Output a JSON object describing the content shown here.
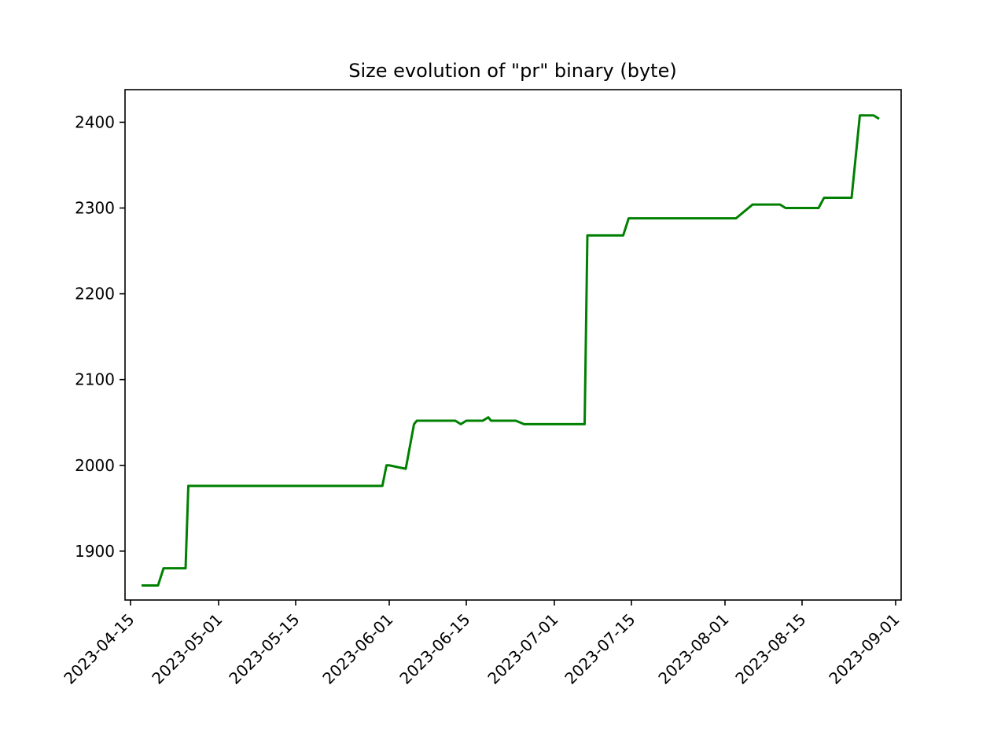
{
  "chart_data": {
    "type": "line",
    "title": "Size evolution of \"pr\" binary (byte)",
    "xlabel": "",
    "ylabel": "",
    "xlim": [
      "2023-04-14",
      "2023-09-02"
    ],
    "ylim": [
      1843,
      2438
    ],
    "x_ticks": [
      "2023-04-15",
      "2023-05-01",
      "2023-05-15",
      "2023-06-01",
      "2023-06-15",
      "2023-07-01",
      "2023-07-15",
      "2023-08-01",
      "2023-08-15",
      "2023-09-01"
    ],
    "y_ticks": [
      1900,
      2000,
      2100,
      2200,
      2300,
      2400
    ],
    "grid": false,
    "legend": "none",
    "series": [
      {
        "color": "#008000",
        "points": [
          [
            "2023-04-17",
            1860
          ],
          [
            "2023-04-20",
            1860
          ],
          [
            "2023-04-21",
            1880
          ],
          [
            "2023-04-25",
            1880
          ],
          [
            "2023-04-25T12",
            1976
          ],
          [
            "2023-05-30T18",
            1976
          ],
          [
            "2023-05-31T12",
            2000
          ],
          [
            "2023-06-01",
            2000
          ],
          [
            "2023-06-04",
            1996
          ],
          [
            "2023-06-05T12",
            2048
          ],
          [
            "2023-06-06",
            2052
          ],
          [
            "2023-06-13",
            2052
          ],
          [
            "2023-06-14",
            2048
          ],
          [
            "2023-06-15",
            2052
          ],
          [
            "2023-06-18",
            2052
          ],
          [
            "2023-06-19",
            2056
          ],
          [
            "2023-06-19T12",
            2052
          ],
          [
            "2023-06-24",
            2052
          ],
          [
            "2023-06-25T12",
            2048
          ],
          [
            "2023-07-06T12",
            2048
          ],
          [
            "2023-07-07",
            2268
          ],
          [
            "2023-07-13T12",
            2268
          ],
          [
            "2023-07-14T12",
            2288
          ],
          [
            "2023-08-03",
            2288
          ],
          [
            "2023-08-06",
            2304
          ],
          [
            "2023-08-11",
            2304
          ],
          [
            "2023-08-12",
            2300
          ],
          [
            "2023-08-18",
            2300
          ],
          [
            "2023-08-19",
            2312
          ],
          [
            "2023-08-24",
            2312
          ],
          [
            "2023-08-25T12",
            2408
          ],
          [
            "2023-08-28",
            2408
          ],
          [
            "2023-08-29",
            2404
          ]
        ]
      }
    ]
  }
}
